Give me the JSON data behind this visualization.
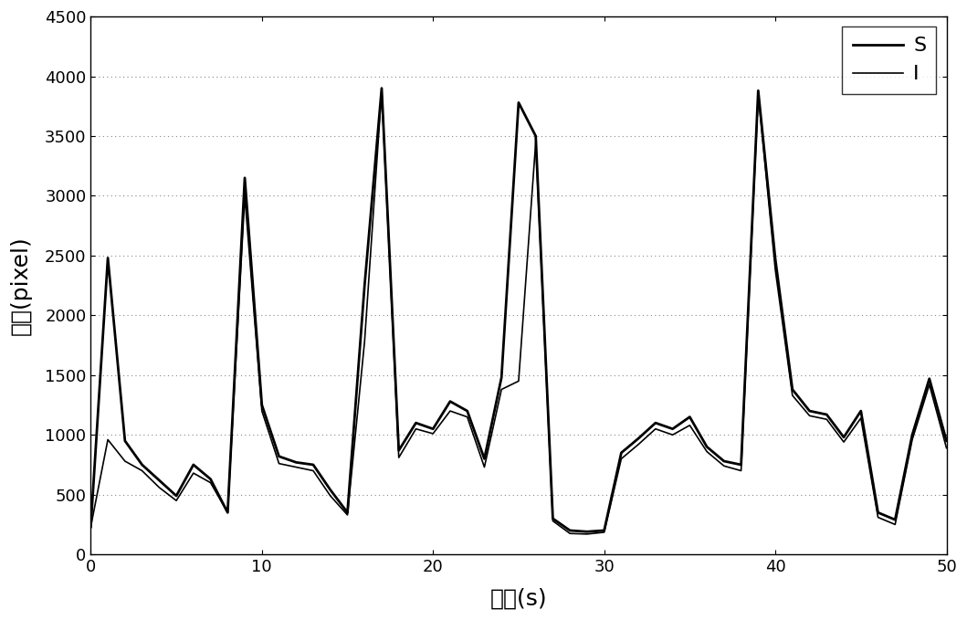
{
  "title": "",
  "xlabel": "时间(s)",
  "ylabel": "像素(pixel)",
  "xlim": [
    0,
    50
  ],
  "ylim": [
    0,
    4500
  ],
  "xticks": [
    0,
    10,
    20,
    30,
    40,
    50
  ],
  "yticks": [
    0,
    500,
    1000,
    1500,
    2000,
    2500,
    3000,
    3500,
    4000,
    4500
  ],
  "background_color": "#ffffff",
  "grid_color": "#888888",
  "S_color": "#000000",
  "I_color": "#000000",
  "S_linewidth": 2.0,
  "I_linewidth": 1.2,
  "S_x": [
    0,
    1,
    2,
    3,
    4,
    5,
    6,
    7,
    8,
    9,
    10,
    11,
    12,
    13,
    14,
    15,
    16,
    17,
    18,
    19,
    20,
    21,
    22,
    23,
    24,
    25,
    26,
    27,
    28,
    29,
    30,
    31,
    32,
    33,
    34,
    35,
    36,
    37,
    38,
    39,
    40,
    41,
    42,
    43,
    44,
    45,
    46,
    47,
    48,
    49,
    50
  ],
  "S_y": [
    230,
    2480,
    950,
    750,
    620,
    490,
    750,
    630,
    350,
    3150,
    1250,
    820,
    770,
    750,
    540,
    350,
    2250,
    3900,
    870,
    1100,
    1050,
    1280,
    1200,
    800,
    1480,
    3780,
    3500,
    300,
    200,
    190,
    200,
    850,
    970,
    1100,
    1050,
    1150,
    900,
    780,
    750,
    3880,
    2470,
    1380,
    1200,
    1170,
    980,
    1200,
    350,
    290,
    1000,
    1470,
    950
  ],
  "I_x": [
    0,
    1,
    2,
    3,
    4,
    5,
    6,
    7,
    8,
    9,
    10,
    11,
    12,
    13,
    14,
    15,
    16,
    17,
    18,
    19,
    20,
    21,
    22,
    23,
    24,
    25,
    26,
    27,
    28,
    29,
    30,
    31,
    32,
    33,
    34,
    35,
    36,
    37,
    38,
    39,
    40,
    41,
    42,
    43,
    44,
    45,
    46,
    47,
    48,
    49,
    50
  ],
  "I_y": [
    230,
    960,
    780,
    700,
    560,
    450,
    680,
    600,
    350,
    3000,
    1200,
    760,
    730,
    700,
    490,
    330,
    1780,
    3880,
    810,
    1050,
    1010,
    1200,
    1150,
    730,
    1380,
    1450,
    3450,
    280,
    175,
    170,
    185,
    800,
    920,
    1050,
    1000,
    1080,
    860,
    740,
    700,
    3850,
    2380,
    1330,
    1160,
    1130,
    940,
    1140,
    310,
    250,
    960,
    1420,
    890
  ]
}
